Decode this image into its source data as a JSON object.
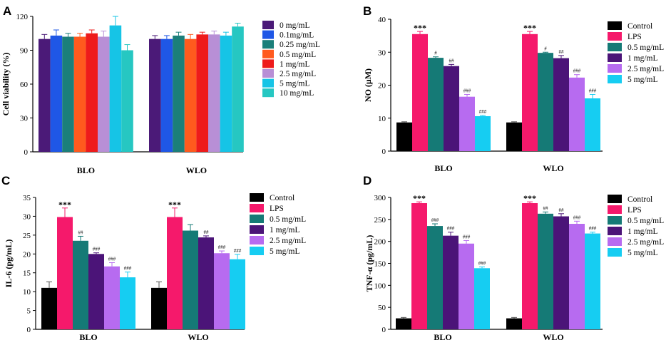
{
  "chart_data": [
    {
      "panel": "A",
      "type": "bar",
      "title": "",
      "xlabel": "",
      "ylabel": "Cell viability (%)",
      "ylim": [
        0,
        120
      ],
      "yticks": [
        "0",
        "30",
        "60",
        "90",
        "120"
      ],
      "categories": [
        "BLO",
        "WLO"
      ],
      "series": [
        {
          "name": "0 mg/mL",
          "color": "#4b1a78",
          "values": [
            100,
            100
          ],
          "errors": [
            4,
            3
          ],
          "labels": [
            "",
            ""
          ]
        },
        {
          "name": "0.1mg/mL",
          "color": "#1f57e6",
          "values": [
            103,
            100
          ],
          "errors": [
            5,
            3
          ],
          "labels": [
            "",
            ""
          ]
        },
        {
          "name": "0.25 mg/mL",
          "color": "#1b7f7a",
          "values": [
            102,
            103
          ],
          "errors": [
            3,
            3
          ],
          "labels": [
            "",
            ""
          ]
        },
        {
          "name": "0.5 mg/mL",
          "color": "#ff5a1e",
          "values": [
            102,
            100
          ],
          "errors": [
            3,
            4
          ],
          "labels": [
            "",
            ""
          ]
        },
        {
          "name": "1 mg/mL",
          "color": "#ee1b1b",
          "values": [
            105,
            104
          ],
          "errors": [
            3,
            2
          ],
          "labels": [
            "",
            ""
          ]
        },
        {
          "name": "2.5 mg/mL",
          "color": "#b88fd6",
          "values": [
            102,
            104
          ],
          "errors": [
            5,
            3
          ],
          "labels": [
            "",
            ""
          ]
        },
        {
          "name": "5 mg/mL",
          "color": "#16c4e6",
          "values": [
            112,
            103
          ],
          "errors": [
            8,
            3
          ],
          "labels": [
            "",
            ""
          ]
        },
        {
          "name": "10 mg/mL",
          "color": "#26c7c2",
          "values": [
            90,
            111
          ],
          "errors": [
            5,
            3
          ],
          "labels": [
            "",
            ""
          ]
        }
      ]
    },
    {
      "panel": "B",
      "type": "bar",
      "title": "",
      "xlabel": "",
      "ylabel": "NO (μM)",
      "ylim": [
        0,
        40
      ],
      "yticks": [
        "0",
        "10",
        "20",
        "30",
        "40"
      ],
      "categories": [
        "BLO",
        "WLO"
      ],
      "series": [
        {
          "name": "Control",
          "color": "#000000",
          "values": [
            8.7,
            8.7
          ],
          "errors": [
            0.2,
            0.2
          ],
          "labels": [
            "",
            ""
          ]
        },
        {
          "name": "LPS",
          "color": "#f5196b",
          "values": [
            35.5,
            35.5
          ],
          "errors": [
            0.8,
            0.8
          ],
          "labels": [
            "***",
            "***"
          ]
        },
        {
          "name": "0.5 mg/mL",
          "color": "#157a76",
          "values": [
            28.3,
            29.8
          ],
          "errors": [
            0.3,
            0.2
          ],
          "labels": [
            "#",
            "#"
          ]
        },
        {
          "name": "1 mg/mL",
          "color": "#4b1478",
          "values": [
            25.8,
            28.2
          ],
          "errors": [
            0.5,
            0.8
          ],
          "labels": [
            "##",
            "##"
          ]
        },
        {
          "name": "2.5 mg/mL",
          "color": "#b76bf0",
          "values": [
            16.5,
            22.3
          ],
          "errors": [
            0.7,
            0.9
          ],
          "labels": [
            "###",
            "###"
          ]
        },
        {
          "name": "5 mg/mL",
          "color": "#16cdf2",
          "values": [
            10.6,
            16.0
          ],
          "errors": [
            0.2,
            1.2
          ],
          "labels": [
            "###",
            "###"
          ]
        }
      ]
    },
    {
      "panel": "C",
      "type": "bar",
      "title": "",
      "xlabel": "",
      "ylabel": "IL-6 (pg/mL)",
      "ylim": [
        0,
        35
      ],
      "yticks": [
        "0",
        "5",
        "10",
        "15",
        "20",
        "25",
        "30",
        "35"
      ],
      "categories": [
        "BLO",
        "WLO"
      ],
      "series": [
        {
          "name": "Control",
          "color": "#000000",
          "values": [
            11.0,
            11.0
          ],
          "errors": [
            1.6,
            1.6
          ],
          "labels": [
            "",
            ""
          ]
        },
        {
          "name": "LPS",
          "color": "#f5196b",
          "values": [
            29.8,
            29.8
          ],
          "errors": [
            2.4,
            2.4
          ],
          "labels": [
            "***",
            "***"
          ]
        },
        {
          "name": "0.5 mg/mL",
          "color": "#157a76",
          "values": [
            23.5,
            26.2
          ],
          "errors": [
            1.2,
            1.6
          ],
          "labels": [
            "##",
            ""
          ]
        },
        {
          "name": "1 mg/mL",
          "color": "#4b1478",
          "values": [
            20.0,
            24.4
          ],
          "errors": [
            0.3,
            0.4
          ],
          "labels": [
            "###",
            "##"
          ]
        },
        {
          "name": "2.5 mg/mL",
          "color": "#b76bf0",
          "values": [
            16.7,
            20.2
          ],
          "errors": [
            1.0,
            0.6
          ],
          "labels": [
            "###",
            "###"
          ]
        },
        {
          "name": "5 mg/mL",
          "color": "#16cdf2",
          "values": [
            13.8,
            18.6
          ],
          "errors": [
            1.4,
            1.3
          ],
          "labels": [
            "###",
            "###"
          ]
        }
      ]
    },
    {
      "panel": "D",
      "type": "bar",
      "title": "",
      "xlabel": "",
      "ylabel": "TNF-α (pg/mL)",
      "ylim": [
        0,
        300
      ],
      "yticks": [
        "0",
        "50",
        "100",
        "150",
        "200",
        "250",
        "300"
      ],
      "categories": [
        "BLO",
        "WLO"
      ],
      "series": [
        {
          "name": "Control",
          "color": "#000000",
          "values": [
            25,
            25
          ],
          "errors": [
            2,
            2
          ],
          "labels": [
            "",
            ""
          ]
        },
        {
          "name": "LPS",
          "color": "#f5196b",
          "values": [
            287,
            287
          ],
          "errors": [
            3,
            3
          ],
          "labels": [
            "***",
            "***"
          ]
        },
        {
          "name": "0.5 mg/mL",
          "color": "#157a76",
          "values": [
            235,
            263
          ],
          "errors": [
            5,
            4
          ],
          "labels": [
            "###",
            "##"
          ]
        },
        {
          "name": "1 mg/mL",
          "color": "#4b1478",
          "values": [
            213,
            257
          ],
          "errors": [
            8,
            6
          ],
          "labels": [
            "###",
            "##"
          ]
        },
        {
          "name": "2.5 mg/mL",
          "color": "#b76bf0",
          "values": [
            195,
            240
          ],
          "errors": [
            7,
            6
          ],
          "labels": [
            "###",
            "###"
          ]
        },
        {
          "name": "5 mg/mL",
          "color": "#16cdf2",
          "values": [
            139,
            218
          ],
          "errors": [
            3,
            3
          ],
          "labels": [
            "###",
            "###"
          ]
        }
      ]
    }
  ]
}
